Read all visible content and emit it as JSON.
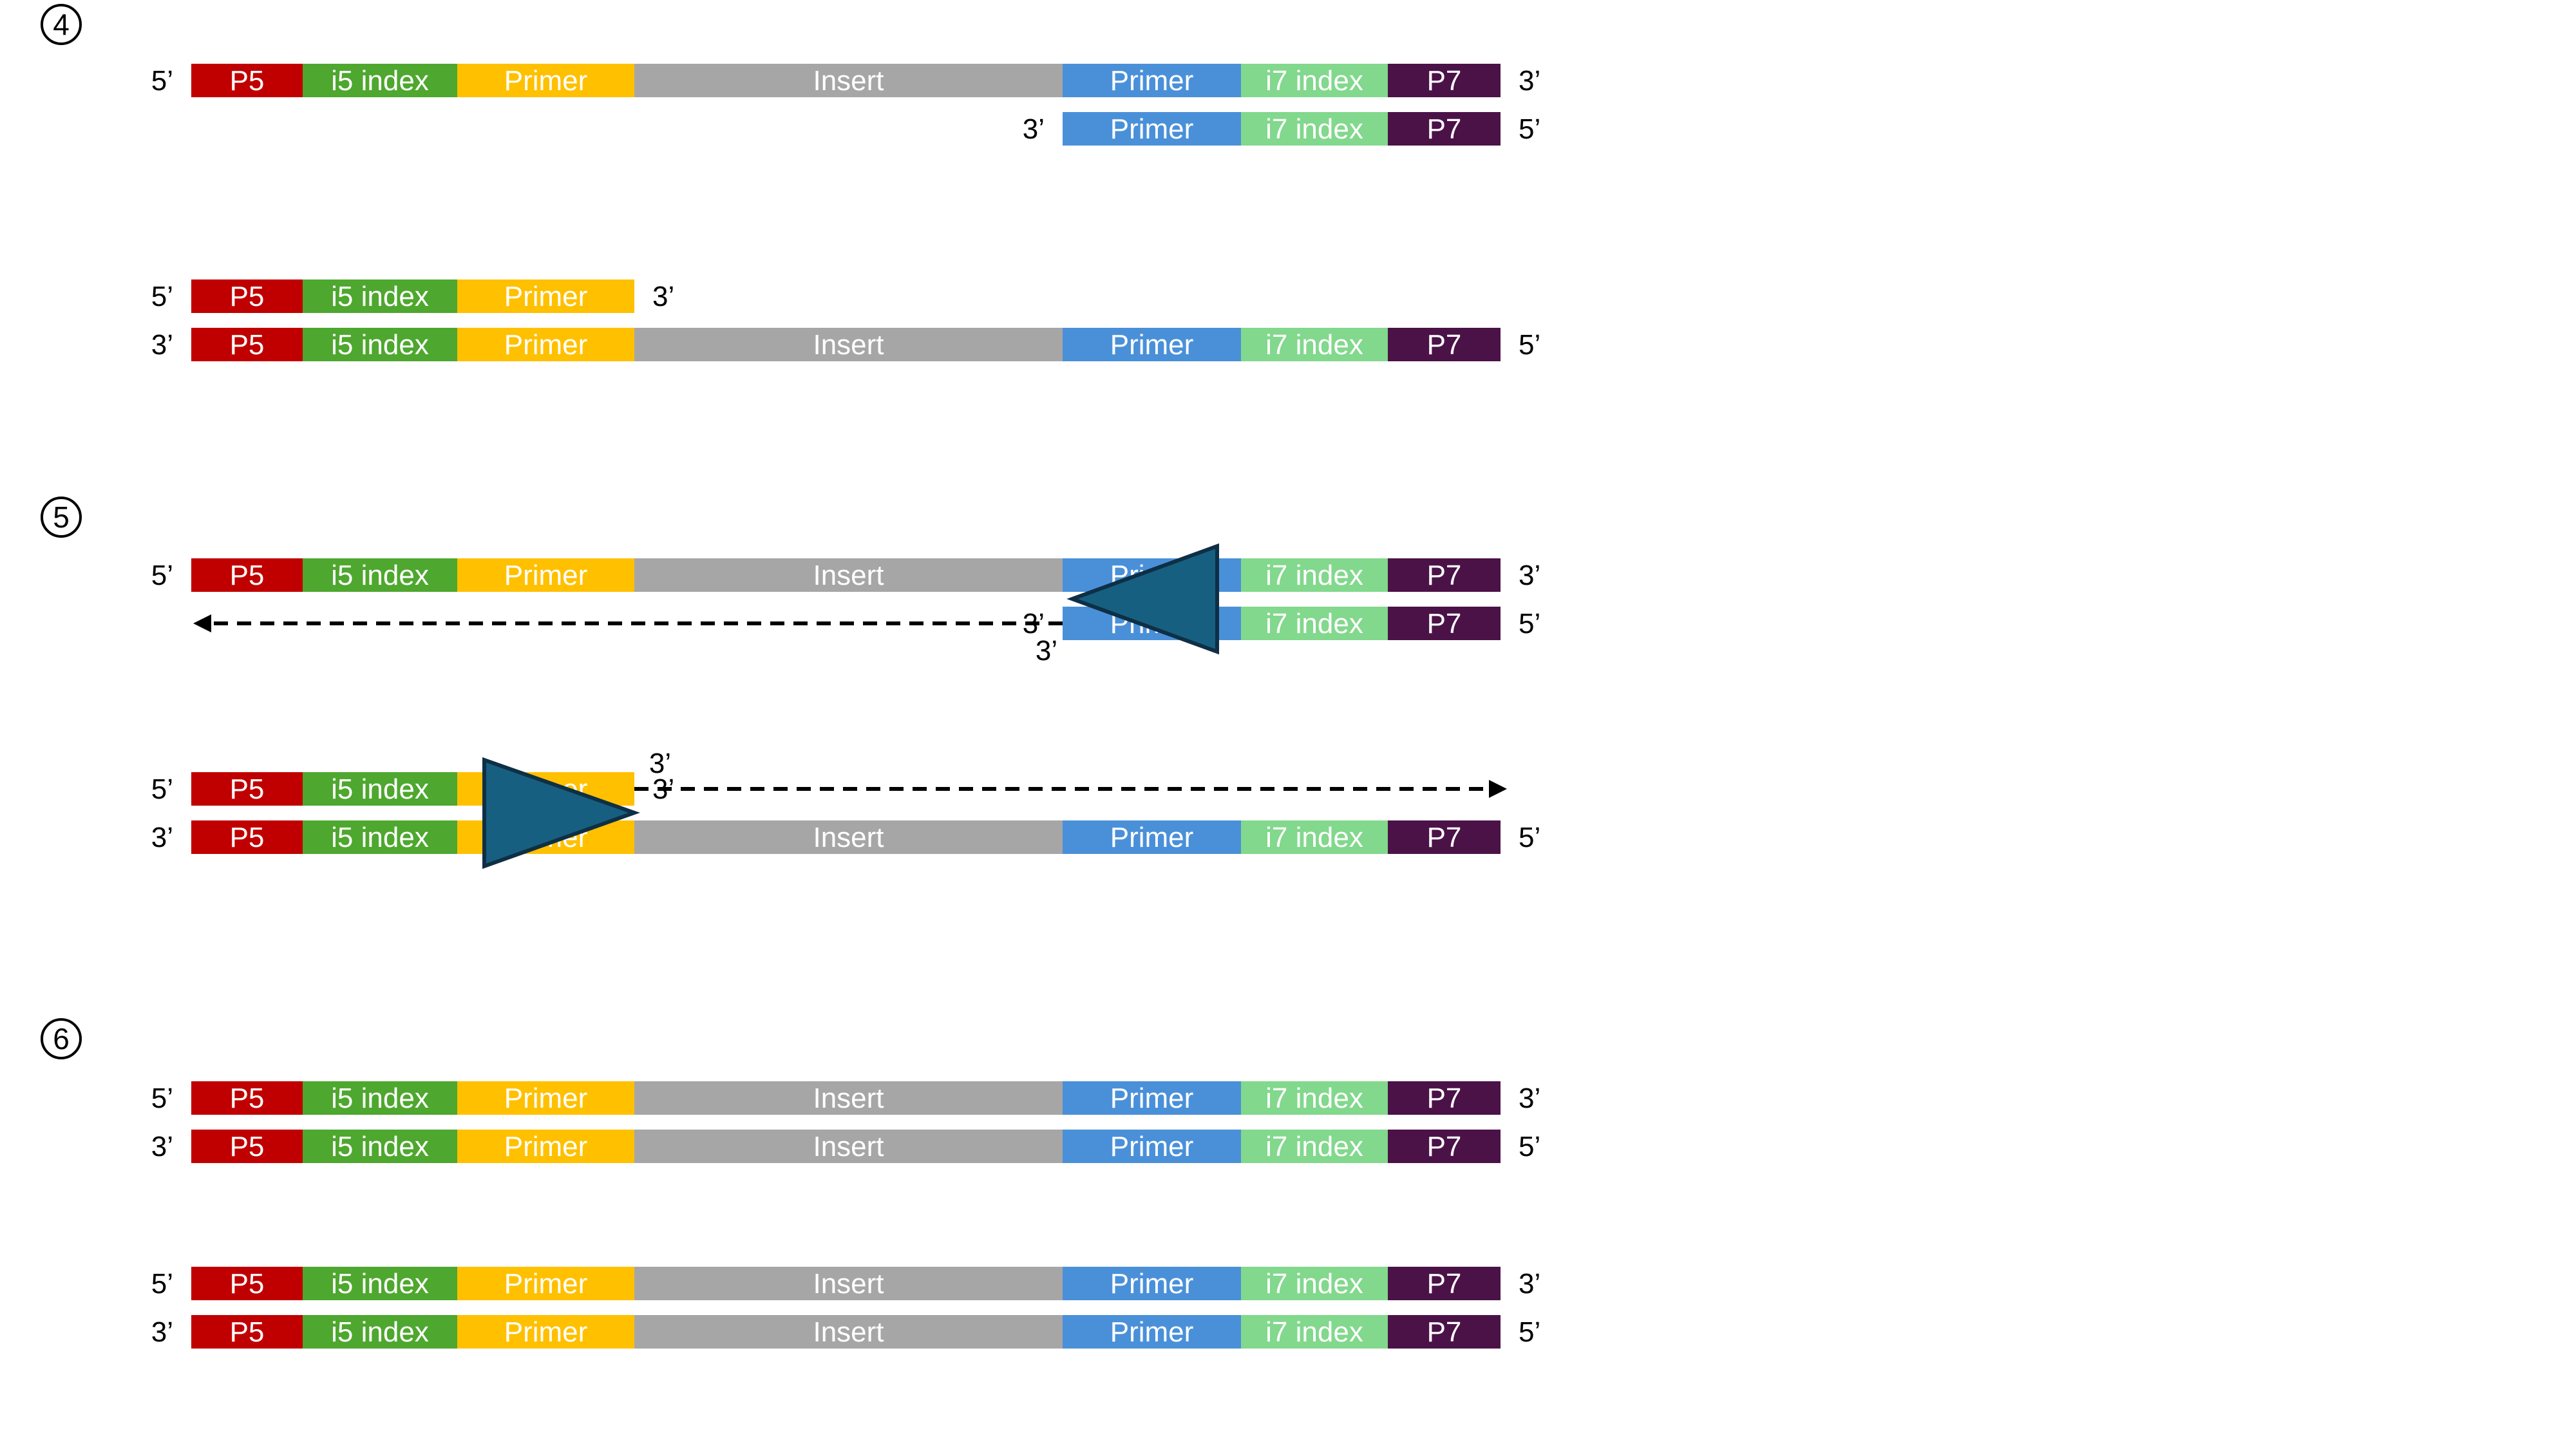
{
  "colors": {
    "P5": "#c00000",
    "i5": "#4ea72e",
    "primerFwd": "#ffc000",
    "insert": "#a6a6a6",
    "primerRev": "#4a90d9",
    "i7": "#82d88c",
    "P7": "#4b1248",
    "triangle": "#175f80",
    "triangleStroke": "#0e2f45",
    "text": "#000000",
    "labelText": "#ffffff"
  },
  "labels": {
    "P5": "P5",
    "i5": "i5 index",
    "primer": "Primer",
    "insert": "Insert",
    "i7": "i7 index",
    "P7": "P7",
    "five_prime": "5’",
    "three_prime": "3’"
  },
  "steps": [
    {
      "id": "4",
      "label": "④"
    },
    {
      "id": "5",
      "label": "⑤"
    },
    {
      "id": "6",
      "label": "⑥"
    }
  ],
  "strands": [
    {
      "id": "s4a-top",
      "segments": [
        "P5",
        "i5",
        "primerFwd",
        "insert",
        "primerRev",
        "i7",
        "P7"
      ],
      "left": "5’",
      "right": "3’"
    },
    {
      "id": "s4a-bottom",
      "segments": [
        "primerRev",
        "i7",
        "P7"
      ],
      "left": "3’",
      "right": "5’"
    },
    {
      "id": "s4b-top",
      "segments": [
        "P5",
        "i5",
        "primerFwd"
      ],
      "left": "5’",
      "right": "3’"
    },
    {
      "id": "s4b-bottom",
      "segments": [
        "P5",
        "i5",
        "primerFwd",
        "insert",
        "primerRev",
        "i7",
        "P7"
      ],
      "left": "3’",
      "right": "5’"
    },
    {
      "id": "s5a-top",
      "segments": [
        "P5",
        "i5",
        "primerFwd",
        "insert",
        "primerRev",
        "i7",
        "P7"
      ],
      "left": "5’",
      "right": "3’"
    },
    {
      "id": "s5a-bottom",
      "segments": [
        "primerRev",
        "i7",
        "P7"
      ],
      "left": "3’",
      "right": "5’"
    },
    {
      "id": "s5b-top",
      "segments": [
        "P5",
        "i5",
        "primerFwd"
      ],
      "left": "5’",
      "right": "3’"
    },
    {
      "id": "s5b-bottom",
      "segments": [
        "P5",
        "i5",
        "primerFwd",
        "insert",
        "primerRev",
        "i7",
        "P7"
      ],
      "left": "3’",
      "right": "5’"
    },
    {
      "id": "s6a-top",
      "segments": [
        "P5",
        "i5",
        "primerFwd",
        "insert",
        "primerRev",
        "i7",
        "P7"
      ],
      "left": "5’",
      "right": "3’"
    },
    {
      "id": "s6a-bottom",
      "segments": [
        "P5",
        "i5",
        "primerFwd",
        "insert",
        "primerRev",
        "i7",
        "P7"
      ],
      "left": "3’",
      "right": "5’"
    },
    {
      "id": "s6b-top",
      "segments": [
        "P5",
        "i5",
        "primerFwd",
        "insert",
        "primerRev",
        "i7",
        "P7"
      ],
      "left": "5’",
      "right": "3’"
    },
    {
      "id": "s6b-bottom",
      "segments": [
        "P5",
        "i5",
        "primerFwd",
        "insert",
        "primerRev",
        "i7",
        "P7"
      ],
      "left": "3’",
      "right": "5’"
    }
  ],
  "extensions": [
    {
      "id": "ext-reverse",
      "direction": "left"
    },
    {
      "id": "ext-forward",
      "direction": "right"
    }
  ]
}
